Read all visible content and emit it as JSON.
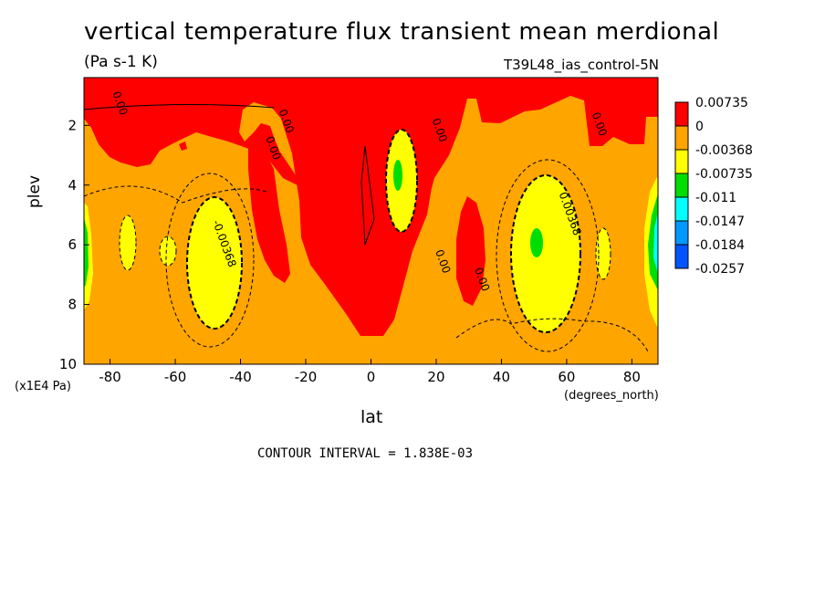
{
  "chart_data": {
    "type": "heatmap",
    "title": "vertical temperature flux transient mean merdional",
    "units": "(Pa s-1 K)",
    "dataset": "T39L48_ias_control-5N",
    "xlabel": "lat",
    "xunit": "(degrees_north)",
    "ylabel": "plev",
    "yunit": "(x1E4 Pa)",
    "xlim": [
      -88,
      88
    ],
    "ylim": [
      10,
      0.4
    ],
    "x_ticks": [
      -80,
      -60,
      -40,
      -20,
      0,
      20,
      40,
      60,
      80
    ],
    "y_ticks": [
      2,
      4,
      6,
      8,
      10
    ],
    "contour_interval": "CONTOUR INTERVAL = 1.838E-03",
    "colorbar": {
      "levels": [
        "0.00735",
        "0",
        "-0.00368",
        "-0.00735",
        "-0.011",
        "-0.0147",
        "-0.0184",
        "-0.0257"
      ],
      "colors": [
        "#ff0000",
        "#ffa500",
        "#ffff00",
        "#00dd00",
        "#00ffff",
        "#0099ff",
        "#0055ff"
      ]
    },
    "contour_labels": [
      {
        "text": "0.00",
        "lat": -78,
        "plev": 1.3
      },
      {
        "text": "0.00",
        "lat": -31,
        "plev": 2.8
      },
      {
        "text": "0.00",
        "lat": -27,
        "plev": 1.9
      },
      {
        "text": "0.00",
        "lat": 20,
        "plev": 2.2
      },
      {
        "text": "0.00",
        "lat": 21,
        "plev": 6.6
      },
      {
        "text": "0.00",
        "lat": 33,
        "plev": 7.2
      },
      {
        "text": "0.00",
        "lat": 69,
        "plev": 2.0
      },
      {
        "text": "-0.00368",
        "lat": -46,
        "plev": 6.0
      },
      {
        "text": "0.00368",
        "lat": 60,
        "plev": 5.0
      }
    ]
  }
}
